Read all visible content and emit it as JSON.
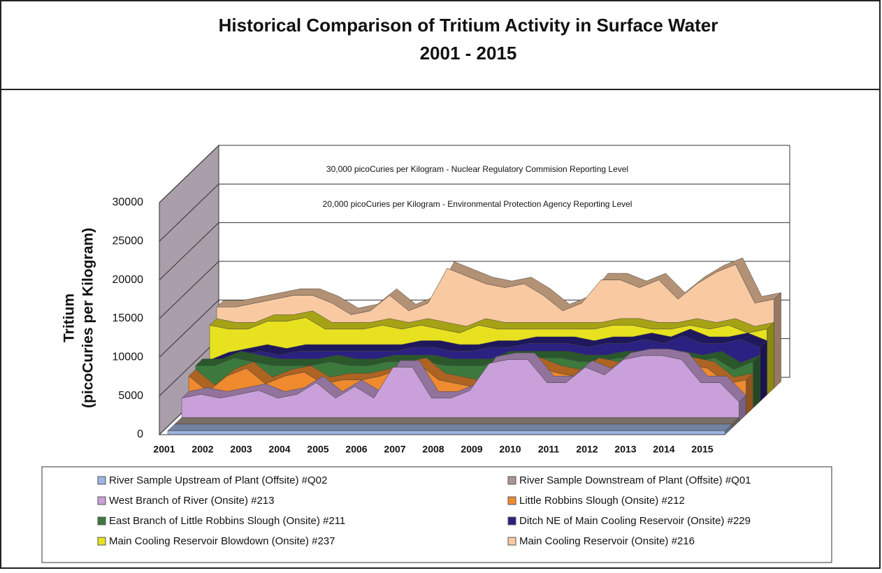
{
  "chart_data": {
    "type": "area3d",
    "title": "Historical Comparison of Tritium Activity in Surface Water",
    "subtitle": "2001 - 2015",
    "y_label": [
      "Tritium",
      "(picoCuries per Kilogram)"
    ],
    "annotations": [
      "30,000 picoCuries per Kilogram - Nuclear Regulatory Commision Reporting Level",
      "20,000 picoCuries per Kilogram - Environmental Protection Agency Reporting Level"
    ],
    "categories": [
      "2001",
      null,
      "2002",
      null,
      "2003",
      null,
      "2004",
      null,
      "2005",
      null,
      "2006",
      null,
      "2007",
      null,
      "2008",
      null,
      "2009",
      null,
      "2010",
      null,
      "2011",
      null,
      "2012",
      null,
      "2013",
      null,
      "2014",
      null,
      "2015",
      null
    ],
    "ylim": [
      0,
      30000
    ],
    "yticks": [
      0,
      5000,
      10000,
      15000,
      20000,
      25000,
      30000
    ],
    "series": [
      {
        "name": "River Sample Upstream of Plant (Offsite)  #Q02",
        "color": "#9fb4e2",
        "values": [
          500,
          500,
          500,
          500,
          500,
          500,
          500,
          500,
          500,
          500,
          500,
          500,
          500,
          500,
          500,
          500,
          500,
          500,
          500,
          500,
          500,
          500,
          500,
          500,
          500,
          500,
          500,
          500,
          500,
          500
        ]
      },
      {
        "name": "River Sample Downstream of Plant (Offsite)  #Q01",
        "color": "#a8978f",
        "values": [
          500,
          500,
          500,
          500,
          500,
          500,
          500,
          500,
          500,
          500,
          500,
          500,
          500,
          500,
          500,
          500,
          500,
          500,
          500,
          500,
          500,
          500,
          500,
          500,
          500,
          500,
          500,
          500,
          500,
          500
        ]
      },
      {
        "name": "West Branch of River (Onsite)  #213",
        "color": "#c9a0d9",
        "values": [
          3000,
          3500,
          3000,
          3500,
          4000,
          3000,
          3500,
          5000,
          3000,
          4500,
          3000,
          7000,
          7000,
          3000,
          3000,
          4000,
          7500,
          8000,
          8000,
          5000,
          5000,
          7000,
          6000,
          8000,
          8500,
          8500,
          8000,
          5000,
          5000,
          2500
        ]
      },
      {
        "name": "Little Robbins Slough (Onsite)  #212",
        "color": "#f08a2e",
        "values": [
          5000,
          3000,
          5000,
          6000,
          4000,
          5000,
          5500,
          4000,
          4500,
          4500,
          5000,
          6000,
          6500,
          4500,
          4000,
          3500,
          6000,
          7000,
          6500,
          5500,
          5000,
          6500,
          6000,
          7000,
          7500,
          7000,
          6500,
          6000,
          4000,
          4500
        ]
      },
      {
        "name": "East Branch of Little Robbins Slough (Onsite)  #211",
        "color": "#3b7a3c",
        "values": [
          5500,
          5500,
          6500,
          6000,
          5500,
          5500,
          5500,
          6000,
          5500,
          5500,
          6000,
          6000,
          6000,
          5500,
          5500,
          5500,
          6500,
          6500,
          6500,
          6500,
          6000,
          6000,
          6500,
          6500,
          6500,
          6500,
          6000,
          6500,
          5000,
          6000
        ]
      },
      {
        "name": "Ditch NE of Main Cooling Reservoir (Onsite)  #229",
        "color": "#2b2181",
        "values": [
          4500,
          5500,
          6000,
          6500,
          6000,
          6500,
          6500,
          6500,
          6500,
          6500,
          6500,
          7000,
          7000,
          6500,
          6500,
          7000,
          7000,
          7500,
          7500,
          7500,
          7000,
          7500,
          7500,
          8000,
          7500,
          8500,
          7500,
          7500,
          8000,
          7000
        ]
      },
      {
        "name": "Main Cooling Reservoir  Blowdown (Onsite)  #237",
        "color": "#e7e11f",
        "values": [
          9000,
          8500,
          8500,
          9500,
          9500,
          10000,
          8500,
          8500,
          8500,
          9000,
          8500,
          9000,
          8500,
          8000,
          9000,
          8500,
          8500,
          8500,
          8500,
          8500,
          8500,
          9000,
          9000,
          8500,
          8500,
          9000,
          8500,
          9000,
          8000,
          8500
        ]
      },
      {
        "name": "Main Cooling Reservoir (Onsite)  #216",
        "color": "#f9c9a1",
        "values": [
          10500,
          10500,
          11000,
          11500,
          12000,
          12000,
          11000,
          9500,
          10000,
          12000,
          10000,
          11000,
          15500,
          14500,
          13500,
          13000,
          13500,
          12000,
          10000,
          11000,
          14000,
          14000,
          13000,
          14000,
          11500,
          13500,
          15000,
          16000,
          11000,
          11500
        ]
      }
    ]
  }
}
